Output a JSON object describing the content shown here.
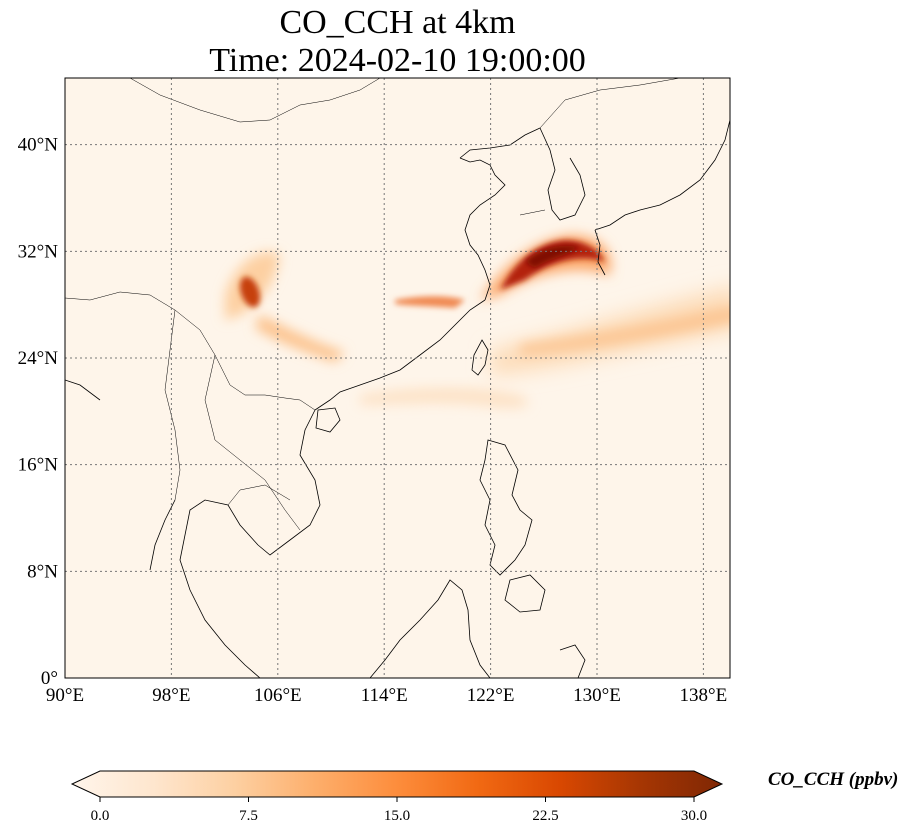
{
  "title": {
    "line1": "CO_CCH at 4km",
    "line2": "Time: 2024-02-10 19:00:00"
  },
  "map": {
    "lon_range": [
      90,
      140
    ],
    "lat_range": [
      0,
      45
    ],
    "gridlines": "dotted",
    "lon_ticks": [
      "90°E",
      "98°E",
      "106°E",
      "114°E",
      "122°E",
      "130°E",
      "138°E"
    ],
    "lat_ticks": [
      "0°",
      "8°N",
      "16°N",
      "24°N",
      "32°N",
      "40°N"
    ],
    "field_description_plumes": [
      {
        "center_lon": 126.5,
        "center_lat": 31.7,
        "level": "high"
      },
      {
        "center_lon": 104.5,
        "center_lat": 29.0,
        "level": "high"
      },
      {
        "center_lon": 117.5,
        "center_lat": 28.5,
        "level": "medium"
      },
      {
        "center_lon": 134,
        "center_lat": 26,
        "level": "low"
      }
    ]
  },
  "colorbar": {
    "label": "CO_CCH (ppbv)",
    "min": 0.0,
    "max": 30.0,
    "extend": "both",
    "ticks": [
      "0.0",
      "7.5",
      "15.0",
      "22.5",
      "30.0"
    ],
    "colors": [
      "#fff5eb",
      "#fee6ce",
      "#fdd0a2",
      "#fdae6b",
      "#fd8d3c",
      "#f16913",
      "#d94801",
      "#a63603",
      "#7f2704"
    ]
  }
}
